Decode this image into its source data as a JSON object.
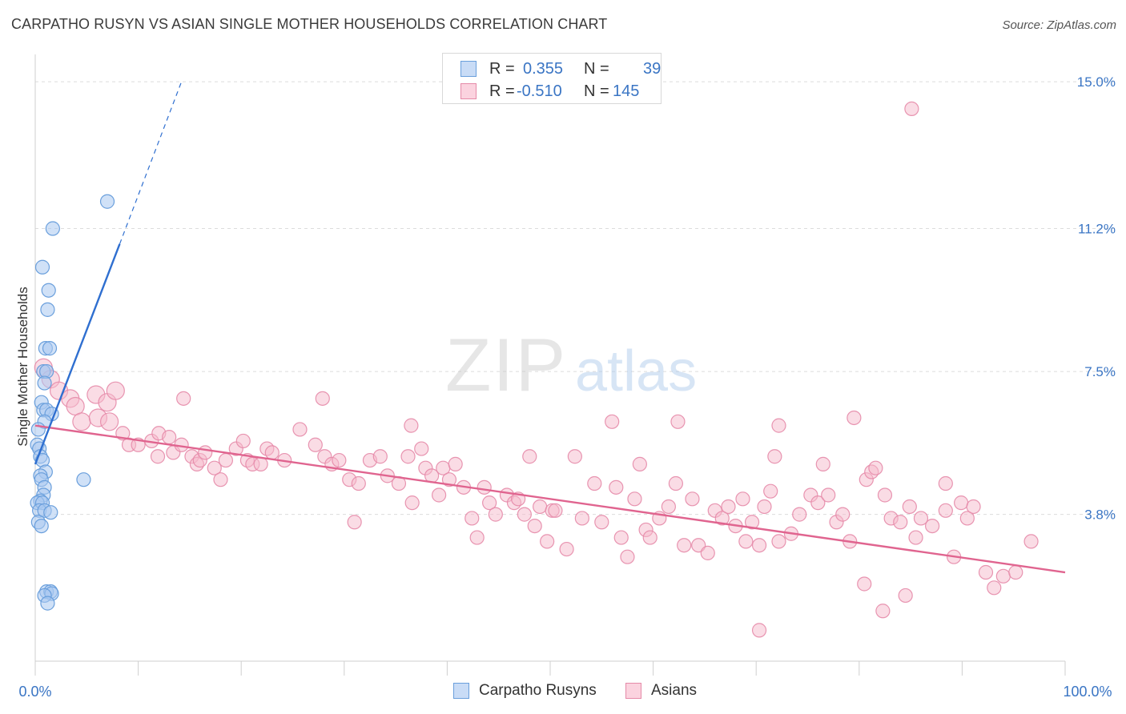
{
  "header": {
    "title": "CARPATHO RUSYN VS ASIAN SINGLE MOTHER HOUSEHOLDS CORRELATION CHART",
    "source": "Source: ZipAtlas.com"
  },
  "watermark": {
    "zip": "ZIP",
    "atlas": "atlas"
  },
  "legend_top": {
    "rows": [
      {
        "r_label": "R =",
        "r_value": "0.355",
        "n_label": "N =",
        "n_value": "39",
        "color": "#a9c8f0"
      },
      {
        "r_label": "R =",
        "r_value": "-0.510",
        "n_label": "N =",
        "n_value": "145",
        "color": "#f6b9cc"
      }
    ]
  },
  "legend_bottom": {
    "items": [
      {
        "label": "Carpatho Rusyns",
        "color": "#a9c8f0"
      },
      {
        "label": "Asians",
        "color": "#f6b9cc"
      }
    ]
  },
  "colors": {
    "blue_fill": "#a9c8f0",
    "blue_stroke": "#6a9fdc",
    "blue_line": "#2f6fd0",
    "pink_fill": "#f6b9cc",
    "pink_stroke": "#e58aa8",
    "pink_line": "#e0648f",
    "axis_label": "#3a75c4",
    "grid": "#dcdcdc"
  },
  "chart_data": {
    "type": "scatter",
    "title": "CARPATHO RUSYN VS ASIAN SINGLE MOTHER HOUSEHOLDS CORRELATION CHART",
    "xlabel": "",
    "ylabel": "Single Mother Households",
    "xlim": [
      0,
      100
    ],
    "ylim": [
      0,
      15.5
    ],
    "x_tick_labels": [
      "0.0%",
      "100.0%"
    ],
    "y_ticks": [
      3.8,
      7.5,
      11.2,
      15.0
    ],
    "y_tick_labels": [
      "3.8%",
      "7.5%",
      "11.2%",
      "15.0%"
    ],
    "grid": true,
    "legend_position": "top-center",
    "series": [
      {
        "name": "Carpatho Rusyns",
        "r": 0.355,
        "n": 39,
        "trend": {
          "x0": 0,
          "y0": 5.1,
          "x1": 8.2,
          "y1": 10.8,
          "dashed_to_x": 14.2,
          "dashed_to_y": 15.0
        },
        "points": [
          [
            7.0,
            11.9
          ],
          [
            1.7,
            11.2
          ],
          [
            0.7,
            10.2
          ],
          [
            1.3,
            9.6
          ],
          [
            1.2,
            9.1
          ],
          [
            1.0,
            8.1
          ],
          [
            1.4,
            8.1
          ],
          [
            0.8,
            7.5
          ],
          [
            1.1,
            7.5
          ],
          [
            0.9,
            7.2
          ],
          [
            0.6,
            6.7
          ],
          [
            0.8,
            6.5
          ],
          [
            1.1,
            6.5
          ],
          [
            1.6,
            6.4
          ],
          [
            0.9,
            6.2
          ],
          [
            0.3,
            6.0
          ],
          [
            0.2,
            5.6
          ],
          [
            0.4,
            5.5
          ],
          [
            0.5,
            5.3
          ],
          [
            0.7,
            5.2
          ],
          [
            1.0,
            4.9
          ],
          [
            0.5,
            4.8
          ],
          [
            0.6,
            4.7
          ],
          [
            4.7,
            4.7
          ],
          [
            0.9,
            4.5
          ],
          [
            0.8,
            4.3
          ],
          [
            0.5,
            4.15
          ],
          [
            0.2,
            4.1
          ],
          [
            0.7,
            4.1
          ],
          [
            0.4,
            3.9
          ],
          [
            0.9,
            3.9
          ],
          [
            1.5,
            3.85
          ],
          [
            0.3,
            3.6
          ],
          [
            0.6,
            3.5
          ],
          [
            1.1,
            1.8
          ],
          [
            1.5,
            1.8
          ],
          [
            1.6,
            1.75
          ],
          [
            0.9,
            1.7
          ],
          [
            1.2,
            1.5
          ]
        ]
      },
      {
        "name": "Asians",
        "r": -0.51,
        "n": 145,
        "trend": {
          "x0": 0,
          "y0": 6.1,
          "x1": 100,
          "y1": 2.3
        },
        "points": [
          [
            85.1,
            14.3
          ],
          [
            0.8,
            7.6
          ],
          [
            1.5,
            7.3
          ],
          [
            2.3,
            7.0
          ],
          [
            3.4,
            6.8
          ],
          [
            3.9,
            6.6
          ],
          [
            5.9,
            6.9
          ],
          [
            7.0,
            6.7
          ],
          [
            7.8,
            7.0
          ],
          [
            14.4,
            6.8
          ],
          [
            27.9,
            6.8
          ],
          [
            4.5,
            6.2
          ],
          [
            6.1,
            6.3
          ],
          [
            7.2,
            6.2
          ],
          [
            8.5,
            5.9
          ],
          [
            9.1,
            5.6
          ],
          [
            10.0,
            5.6
          ],
          [
            11.3,
            5.7
          ],
          [
            12.0,
            5.9
          ],
          [
            11.9,
            5.3
          ],
          [
            13.0,
            5.8
          ],
          [
            13.4,
            5.4
          ],
          [
            14.2,
            5.6
          ],
          [
            15.2,
            5.3
          ],
          [
            15.7,
            5.1
          ],
          [
            16.0,
            5.2
          ],
          [
            16.5,
            5.4
          ],
          [
            17.4,
            5.0
          ],
          [
            18.0,
            4.7
          ],
          [
            18.5,
            5.2
          ],
          [
            19.5,
            5.5
          ],
          [
            20.2,
            5.7
          ],
          [
            20.6,
            5.2
          ],
          [
            21.1,
            5.1
          ],
          [
            21.9,
            5.1
          ],
          [
            22.5,
            5.5
          ],
          [
            23.0,
            5.4
          ],
          [
            24.2,
            5.2
          ],
          [
            25.7,
            6.0
          ],
          [
            27.2,
            5.6
          ],
          [
            28.1,
            5.3
          ],
          [
            28.8,
            5.1
          ],
          [
            29.5,
            5.2
          ],
          [
            30.5,
            4.7
          ],
          [
            31.0,
            3.6
          ],
          [
            31.4,
            4.6
          ],
          [
            32.5,
            5.2
          ],
          [
            33.5,
            5.3
          ],
          [
            34.2,
            4.8
          ],
          [
            35.3,
            4.6
          ],
          [
            36.2,
            5.3
          ],
          [
            36.6,
            4.1
          ],
          [
            37.5,
            5.5
          ],
          [
            37.9,
            5.0
          ],
          [
            38.5,
            4.8
          ],
          [
            39.2,
            4.3
          ],
          [
            39.6,
            5.0
          ],
          [
            40.2,
            4.7
          ],
          [
            40.8,
            5.1
          ],
          [
            41.6,
            4.5
          ],
          [
            42.4,
            3.7
          ],
          [
            42.9,
            3.2
          ],
          [
            43.6,
            4.5
          ],
          [
            44.1,
            4.1
          ],
          [
            44.7,
            3.8
          ],
          [
            45.8,
            4.3
          ],
          [
            46.5,
            4.1
          ],
          [
            46.9,
            4.2
          ],
          [
            47.5,
            3.8
          ],
          [
            48.0,
            5.3
          ],
          [
            48.5,
            3.5
          ],
          [
            49.0,
            4.0
          ],
          [
            49.7,
            3.1
          ],
          [
            50.2,
            3.9
          ],
          [
            50.5,
            3.9
          ],
          [
            51.6,
            2.9
          ],
          [
            52.4,
            5.3
          ],
          [
            53.1,
            3.7
          ],
          [
            54.3,
            4.6
          ],
          [
            55.0,
            3.6
          ],
          [
            56.4,
            4.5
          ],
          [
            56.9,
            3.2
          ],
          [
            57.5,
            2.7
          ],
          [
            58.2,
            4.2
          ],
          [
            59.3,
            3.4
          ],
          [
            59.7,
            3.2
          ],
          [
            60.6,
            3.7
          ],
          [
            61.5,
            4.0
          ],
          [
            62.2,
            4.6
          ],
          [
            63.0,
            3.0
          ],
          [
            63.8,
            4.2
          ],
          [
            64.4,
            3.0
          ],
          [
            65.3,
            2.8
          ],
          [
            66.0,
            3.9
          ],
          [
            66.7,
            3.7
          ],
          [
            67.3,
            4.0
          ],
          [
            68.0,
            3.5
          ],
          [
            68.7,
            4.2
          ],
          [
            69.0,
            3.1
          ],
          [
            69.6,
            3.6
          ],
          [
            70.3,
            3.0
          ],
          [
            70.8,
            4.0
          ],
          [
            71.4,
            4.4
          ],
          [
            72.2,
            3.1
          ],
          [
            73.4,
            3.3
          ],
          [
            74.2,
            3.8
          ],
          [
            75.3,
            4.3
          ],
          [
            76.0,
            4.1
          ],
          [
            77.0,
            4.3
          ],
          [
            77.8,
            3.6
          ],
          [
            78.4,
            3.8
          ],
          [
            79.1,
            3.1
          ],
          [
            80.7,
            4.7
          ],
          [
            81.2,
            4.9
          ],
          [
            81.6,
            5.0
          ],
          [
            82.5,
            4.3
          ],
          [
            83.1,
            3.7
          ],
          [
            84.0,
            3.6
          ],
          [
            84.9,
            4.0
          ],
          [
            85.5,
            3.2
          ],
          [
            86.0,
            3.7
          ],
          [
            87.1,
            3.5
          ],
          [
            88.4,
            3.9
          ],
          [
            89.2,
            2.7
          ],
          [
            89.9,
            4.1
          ],
          [
            90.5,
            3.7
          ],
          [
            91.1,
            4.0
          ],
          [
            92.3,
            2.3
          ],
          [
            93.1,
            1.9
          ],
          [
            94.0,
            2.2
          ],
          [
            95.2,
            2.3
          ],
          [
            96.7,
            3.1
          ],
          [
            72.2,
            6.1
          ],
          [
            76.5,
            5.1
          ],
          [
            62.4,
            6.2
          ],
          [
            56.0,
            6.2
          ],
          [
            58.7,
            5.1
          ],
          [
            71.8,
            5.3
          ],
          [
            79.5,
            6.3
          ],
          [
            80.5,
            2.0
          ],
          [
            84.5,
            1.7
          ],
          [
            82.3,
            1.3
          ],
          [
            70.3,
            0.8
          ],
          [
            88.4,
            4.6
          ],
          [
            36.5,
            6.1
          ]
        ]
      }
    ]
  }
}
